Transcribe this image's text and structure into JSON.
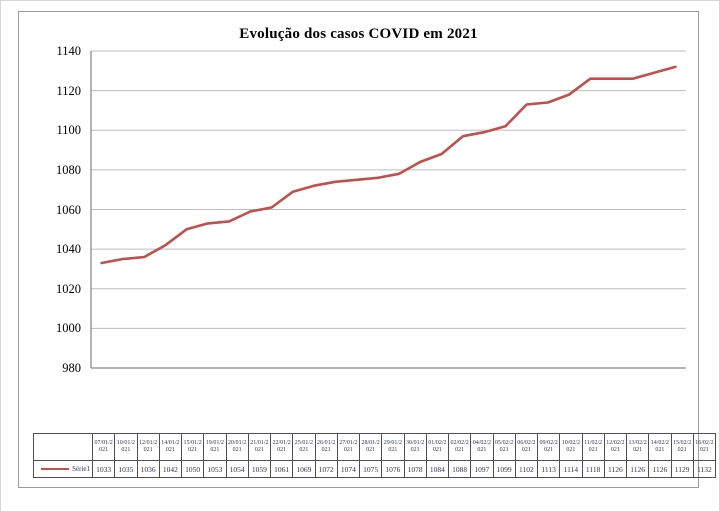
{
  "chart_data": {
    "type": "line",
    "title": "Evolução dos casos COVID em 2021",
    "categories": [
      "07/01/2021",
      "10/01/2021",
      "12/01/2021",
      "14/01/2021",
      "15/01/2021",
      "19/01/2021",
      "20/01/2021",
      "21/01/2021",
      "22/01/2021",
      "25/01/2021",
      "26/01/2021",
      "27/01/2021",
      "28/01/2021",
      "29/01/2021",
      "30/01/2021",
      "01/02/2021",
      "02/02/2021",
      "04/02/2021",
      "05/02/2021",
      "06/02/2021",
      "09/02/2021",
      "10/02/2021",
      "11/02/2021",
      "12/02/2021",
      "13/02/2021",
      "14/02/2021",
      "15/02/2021",
      "16/02/2021"
    ],
    "series": [
      {
        "name": "Série1",
        "values": [
          1033,
          1035,
          1036,
          1042,
          1050,
          1053,
          1054,
          1059,
          1061,
          1069,
          1072,
          1074,
          1075,
          1076,
          1078,
          1084,
          1088,
          1097,
          1099,
          1102,
          1113,
          1114,
          1118,
          1126,
          1126,
          1126,
          1129,
          1132
        ]
      }
    ],
    "xlabel": "",
    "ylabel": "",
    "ylim": [
      980,
      1140
    ],
    "y_ticks": [
      980,
      1000,
      1020,
      1040,
      1060,
      1080,
      1100,
      1120,
      1140
    ],
    "grid": "horizontal",
    "legend_position": "data-table-left",
    "data_table_shown": true
  },
  "colors": {
    "series_line": "#C0504D",
    "gridline": "#bdbdbd",
    "axis": "#6b6b6b",
    "frame_border": "#9c9c9c",
    "table_border": "#4f4f4f",
    "table_text": "#2c3357",
    "title_text": "#000000",
    "background": "#ffffff"
  }
}
